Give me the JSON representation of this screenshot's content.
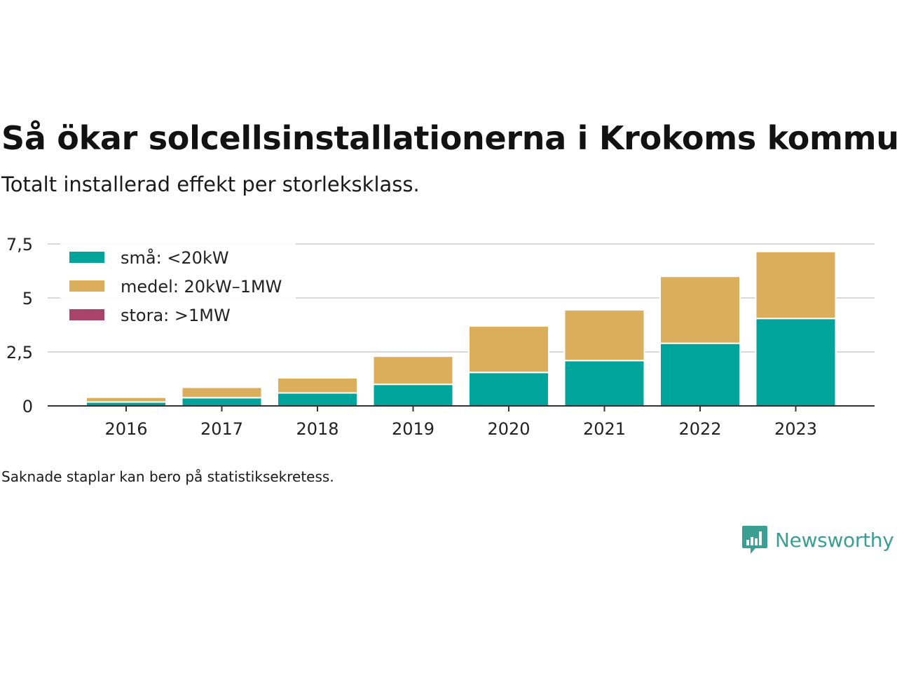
{
  "header": {
    "title": "Så ökar solcellsinstallationerna i Krokoms kommun",
    "subtitle": "Totalt installerad effekt per storleksklass."
  },
  "chart_data": {
    "type": "bar",
    "stacked": true,
    "title": "Så ökar solcellsinstallationerna i Krokoms kommun",
    "subtitle": "Totalt installerad effekt per storleksklass.",
    "xlabel": "",
    "ylabel": "",
    "categories": [
      "2016",
      "2017",
      "2018",
      "2019",
      "2020",
      "2021",
      "2022",
      "2023"
    ],
    "series": [
      {
        "name": "små: <20kW",
        "color": "#00a49a",
        "values": [
          0.18,
          0.38,
          0.6,
          1.0,
          1.55,
          2.1,
          2.9,
          4.05
        ]
      },
      {
        "name": "medel: 20kW–1MW",
        "color": "#dbae5b",
        "values": [
          0.22,
          0.48,
          0.7,
          1.3,
          2.15,
          2.35,
          3.1,
          3.1
        ]
      },
      {
        "name": "stora: >1MW",
        "color": "#a8436a",
        "values": [
          0,
          0,
          0,
          0,
          0,
          0,
          0,
          0
        ]
      }
    ],
    "ylim": [
      0,
      7.5
    ],
    "yticks": [
      0,
      2.5,
      5,
      7.5
    ],
    "ytick_labels": [
      "0",
      "2,5",
      "5",
      "7,5"
    ],
    "grid": true,
    "legend_position": "top-left"
  },
  "footer": {
    "note": "Saknade staplar kan bero på statistiksekretess.",
    "brand": "Newsworthy",
    "brand_color": "#3a9e92",
    "logo_icon": "bar-chart-speech-bubble-icon"
  }
}
